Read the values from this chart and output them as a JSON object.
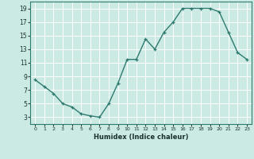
{
  "x": [
    0,
    1,
    2,
    3,
    4,
    5,
    6,
    7,
    8,
    9,
    10,
    11,
    12,
    13,
    14,
    15,
    16,
    17,
    18,
    19,
    20,
    21,
    22,
    23
  ],
  "y": [
    8.5,
    7.5,
    6.5,
    5.0,
    4.5,
    3.5,
    3.2,
    3.0,
    5.0,
    8.0,
    11.5,
    11.5,
    14.5,
    13.0,
    15.5,
    17.0,
    19.0,
    19.0,
    19.0,
    19.0,
    18.5,
    15.5,
    12.5,
    11.5
  ],
  "line_color": "#2d7a6e",
  "marker": "+",
  "marker_size": 3,
  "xlabel": "Humidex (Indice chaleur)",
  "xlim": [
    -0.5,
    23.5
  ],
  "ylim": [
    2,
    20
  ],
  "yticks": [
    3,
    5,
    7,
    9,
    11,
    13,
    15,
    17,
    19
  ],
  "xticks": [
    0,
    1,
    2,
    3,
    4,
    5,
    6,
    7,
    8,
    9,
    10,
    11,
    12,
    13,
    14,
    15,
    16,
    17,
    18,
    19,
    20,
    21,
    22,
    23
  ],
  "bg_color": "#cceae4",
  "grid_color": "#ffffff",
  "line_width": 1.0,
  "spine_color": "#2d7a6e"
}
